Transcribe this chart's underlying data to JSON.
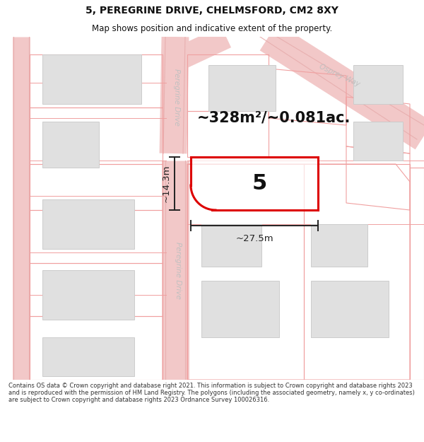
{
  "title": "5, PEREGRINE DRIVE, CHELMSFORD, CM2 8XY",
  "subtitle": "Map shows position and indicative extent of the property.",
  "area_text": "~328m²/~0.081ac.",
  "property_number": "5",
  "dim_width": "~27.5m",
  "dim_height": "~14.3m",
  "map_bg": "#ffffff",
  "road_fill": "#f2c8c8",
  "road_outline": "#e8b0b0",
  "road_center_fill": "#f8f0f0",
  "building_fill": "#e0e0e0",
  "building_outline": "#cccccc",
  "plot_outline_fill": "#f9f9f9",
  "plot_outline_color": "#f0a0a0",
  "subject_color": "#dd0000",
  "dim_color": "#222222",
  "road_label_color": "#bbbbbb",
  "text_color": "#111111",
  "footer_bg": "#ffffff",
  "footer_text": "Contains OS data © Crown copyright and database right 2021. This information is subject to Crown copyright and database rights 2023 and is reproduced with the permission of HM Land Registry. The polygons (including the associated geometry, namely x, y co-ordinates) are subject to Crown copyright and database rights 2023 Ordnance Survey 100026316.",
  "title_fontsize": 10,
  "subtitle_fontsize": 8.5,
  "footer_fontsize": 6.0
}
